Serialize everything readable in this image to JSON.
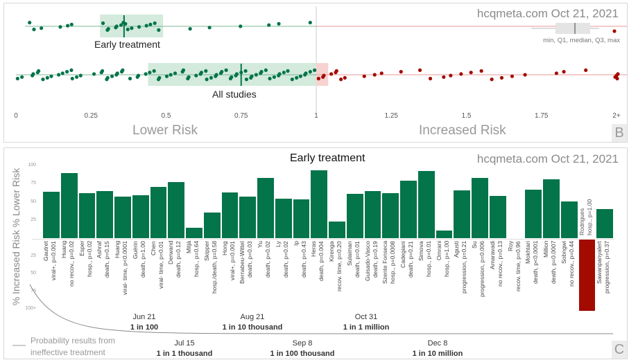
{
  "chart_data": [
    {
      "type": "scatter",
      "panel_letter": "B",
      "brand": "hcqmeta.com Oct 21, 2021",
      "xlabel_left": "Lower Risk",
      "xlabel_right": "Increased Risk",
      "x_ticks": [
        "0",
        "0.25",
        "0.5",
        "0.75",
        "1",
        "1.25",
        "1.5",
        "1.75",
        "2+"
      ],
      "xlim": [
        0,
        2
      ],
      "legend": {
        "text": "min, Q1, median, Q3, max",
        "placement": "top-right"
      },
      "rows": [
        {
          "name": "Early treatment",
          "box": {
            "q1": 0.28,
            "median": 0.36,
            "q3": 0.49
          },
          "values": [
            0.05,
            0.06,
            0.08,
            0.15,
            0.17,
            0.19,
            0.29,
            0.3,
            0.31,
            0.33,
            0.34,
            0.35,
            0.36,
            0.36,
            0.37,
            0.39,
            0.41,
            0.43,
            0.45,
            0.46,
            0.48,
            0.58,
            0.64,
            0.75,
            0.84,
            0.88,
            0.98,
            2.0
          ]
        },
        {
          "name": "All studies",
          "box": {
            "q1": 0.44,
            "median": 0.75,
            "q3": 1.04
          },
          "values": [
            0.01,
            0.02,
            0.05,
            0.06,
            0.07,
            0.08,
            0.09,
            0.1,
            0.12,
            0.14,
            0.16,
            0.17,
            0.18,
            0.19,
            0.2,
            0.22,
            0.26,
            0.28,
            0.29,
            0.3,
            0.31,
            0.32,
            0.33,
            0.34,
            0.35,
            0.36,
            0.38,
            0.4,
            0.41,
            0.43,
            0.45,
            0.46,
            0.47,
            0.48,
            0.5,
            0.52,
            0.53,
            0.55,
            0.56,
            0.57,
            0.58,
            0.6,
            0.61,
            0.62,
            0.63,
            0.64,
            0.65,
            0.66,
            0.67,
            0.68,
            0.69,
            0.7,
            0.71,
            0.72,
            0.73,
            0.74,
            0.75,
            0.76,
            0.77,
            0.78,
            0.79,
            0.8,
            0.81,
            0.82,
            0.83,
            0.85,
            0.86,
            0.87,
            0.88,
            0.89,
            0.91,
            0.92,
            0.93,
            0.95,
            0.96,
            0.97,
            0.98,
            0.99,
            1.01,
            1.02,
            1.03,
            1.05,
            1.06,
            1.07,
            1.08,
            1.1,
            1.16,
            1.19,
            1.22,
            1.28,
            1.35,
            1.38,
            1.42,
            1.45,
            1.48,
            1.52,
            1.55,
            1.58,
            1.62,
            1.65,
            1.7,
            1.8,
            1.82,
            1.9,
            2.0,
            2.0,
            2.0,
            2.0
          ]
        }
      ]
    },
    {
      "type": "bar",
      "panel_letter": "C",
      "title": "Early treatment",
      "brand": "hcqmeta.com Oct 21, 2021",
      "ylabel": "% Increased Risk % Lower Risk",
      "y_ticks_up": [
        "25",
        "50",
        "75",
        "100"
      ],
      "y_ticks_down": [
        "25",
        "50",
        "75",
        "100+"
      ],
      "ylim": [
        -100,
        100
      ],
      "bars": [
        {
          "name": "Gautret",
          "outcome": "viral+, p=0.001",
          "value": 66
        },
        {
          "name": "Huang",
          "outcome": "no recov., p=0.02",
          "value": 91
        },
        {
          "name": "Esper",
          "outcome": "hosp., p=0.02",
          "value": 64
        },
        {
          "name": "Ashraf",
          "outcome": "death, p=0.15",
          "value": 67
        },
        {
          "name": "Huang",
          "outcome": "viral- time, p<0.0001",
          "value": 59
        },
        {
          "name": "Guérin",
          "outcome": "death, p=1.00",
          "value": 61
        },
        {
          "name": "Chen",
          "outcome": "viral- time, p=0.01",
          "value": 72
        },
        {
          "name": "Derwand",
          "outcome": "death, p=0.12",
          "value": 79
        },
        {
          "name": "Mitjà",
          "outcome": "hosp., p=0.64",
          "value": 16
        },
        {
          "name": "Skipper",
          "outcome": "hosp./death, p=0.58",
          "value": 37
        },
        {
          "name": "Hong",
          "outcome": "viral+, p=0.001",
          "value": 65
        },
        {
          "name": "Bernabeu-Wittel",
          "outcome": "death, p=0.03",
          "value": 59
        },
        {
          "name": "Yu",
          "outcome": "death, p=0.02",
          "value": 85
        },
        {
          "name": "Ly",
          "outcome": "death, p=0.02",
          "value": 56
        },
        {
          "name": "Ip",
          "outcome": "death, p=0.43",
          "value": 55
        },
        {
          "name": "Heras",
          "outcome": "death, p=0.004",
          "value": 95
        },
        {
          "name": "Kirenga",
          "outcome": "recov. time, p=0.20",
          "value": 25
        },
        {
          "name": "Sulaiman",
          "outcome": "death, p=0.01",
          "value": 63
        },
        {
          "name": "Guisado-Vasco",
          "outcome": "death, p=0.19",
          "value": 67
        },
        {
          "name": "Szente Fonseca",
          "outcome": "hosp., p=0.0008",
          "value": 64
        },
        {
          "name": "Cadegiani",
          "outcome": "death, p=0.21",
          "value": 81
        },
        {
          "name": "Simova",
          "outcome": "hosp., p=0.01",
          "value": 94
        },
        {
          "name": "Omrani",
          "outcome": "hosp., p=1.00",
          "value": 12
        },
        {
          "name": "Agusti",
          "outcome": "progression, p=0.21",
          "value": 68
        },
        {
          "name": "Su",
          "outcome": "progression, p=0.006",
          "value": 85
        },
        {
          "name": "Amaravadi",
          "outcome": "no recov., p=0.13",
          "value": 60
        },
        {
          "name": "Roy",
          "outcome": "recov. time, p=0.96",
          "value": 2
        },
        {
          "name": "Mokhtari",
          "outcome": "death, p<0.0001",
          "value": 69
        },
        {
          "name": "Million",
          "outcome": "death, p=0.0007",
          "value": 83
        },
        {
          "name": "Sobngwi",
          "outcome": "no recov., p=0.44",
          "value": 52
        },
        {
          "name": "Rodrigues",
          "outcome": "hosp., p=1.00",
          "value": -100
        },
        {
          "name": "Sawanpanyalert",
          "outcome": "progression, p=0.37",
          "value": 42
        }
      ],
      "legend": "Probability results from ineffective treatment",
      "annotations": [
        {
          "date": "Jun 21",
          "prob": "1 in 100"
        },
        {
          "date": "Aug 21",
          "prob": "1 in 10 thousand"
        },
        {
          "date": "Oct 31",
          "prob": "1 in 1 million"
        },
        {
          "date": "Jul 15",
          "prob": "1 in 1 thousand"
        },
        {
          "date": "Sep 8",
          "prob": "1 in 100 thousand"
        },
        {
          "date": "Dec 8",
          "prob": "1 in 10 million"
        }
      ]
    }
  ],
  "colors": {
    "positive": "#04744a",
    "negative": "#a30b00"
  }
}
